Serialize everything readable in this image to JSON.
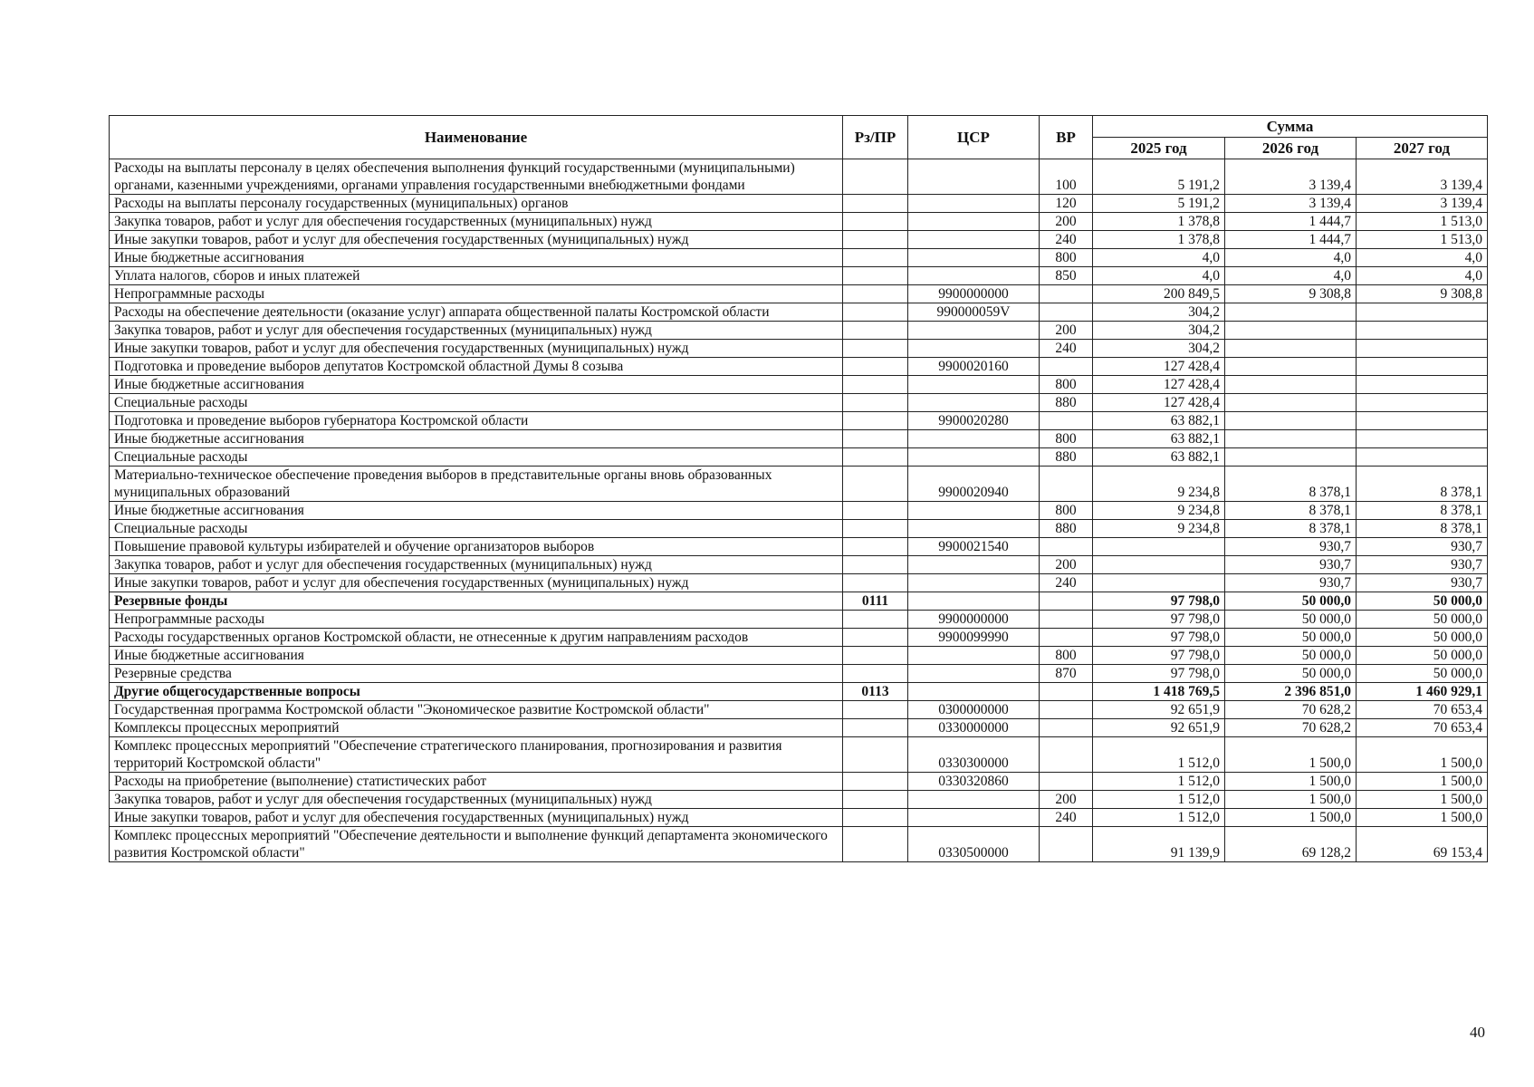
{
  "header": {
    "name": "Наименование",
    "rz_pr": "Рз/ПР",
    "csr": "ЦСР",
    "vr": "ВР",
    "sum": "Сумма",
    "y2025": "2025 год",
    "y2026": "2026 год",
    "y2027": "2027 год"
  },
  "rows": [
    {
      "name": "Расходы на выплаты персоналу в целях обеспечения выполнения функций государственными (муниципальными) органами, казенными учреждениями, органами управления государственными внебюджетными фондами",
      "rz": "",
      "csr": "",
      "vr": "100",
      "y2025": "5 191,2",
      "y2026": "3 139,4",
      "y2027": "3 139,4",
      "bold": false
    },
    {
      "name": "Расходы на выплаты персоналу государственных (муниципальных) органов",
      "rz": "",
      "csr": "",
      "vr": "120",
      "y2025": "5 191,2",
      "y2026": "3 139,4",
      "y2027": "3 139,4",
      "bold": false
    },
    {
      "name": "Закупка товаров, работ и услуг для обеспечения государственных (муниципальных) нужд",
      "rz": "",
      "csr": "",
      "vr": "200",
      "y2025": "1 378,8",
      "y2026": "1 444,7",
      "y2027": "1 513,0",
      "bold": false
    },
    {
      "name": "Иные закупки товаров, работ и услуг для обеспечения государственных (муниципальных) нужд",
      "rz": "",
      "csr": "",
      "vr": "240",
      "y2025": "1 378,8",
      "y2026": "1 444,7",
      "y2027": "1 513,0",
      "bold": false
    },
    {
      "name": "Иные бюджетные ассигнования",
      "rz": "",
      "csr": "",
      "vr": "800",
      "y2025": "4,0",
      "y2026": "4,0",
      "y2027": "4,0",
      "bold": false
    },
    {
      "name": "Уплата налогов, сборов и иных платежей",
      "rz": "",
      "csr": "",
      "vr": "850",
      "y2025": "4,0",
      "y2026": "4,0",
      "y2027": "4,0",
      "bold": false
    },
    {
      "name": "Непрограммные расходы",
      "rz": "",
      "csr": "9900000000",
      "vr": "",
      "y2025": "200 849,5",
      "y2026": "9 308,8",
      "y2027": "9 308,8",
      "bold": false
    },
    {
      "name": "Расходы на обеспечение деятельности (оказание услуг) аппарата общественной палаты Костромской области",
      "rz": "",
      "csr": "990000059V",
      "vr": "",
      "y2025": "304,2",
      "y2026": "",
      "y2027": "",
      "bold": false
    },
    {
      "name": "Закупка товаров, работ и услуг для обеспечения государственных (муниципальных) нужд",
      "rz": "",
      "csr": "",
      "vr": "200",
      "y2025": "304,2",
      "y2026": "",
      "y2027": "",
      "bold": false
    },
    {
      "name": "Иные закупки товаров, работ и услуг для обеспечения государственных (муниципальных) нужд",
      "rz": "",
      "csr": "",
      "vr": "240",
      "y2025": "304,2",
      "y2026": "",
      "y2027": "",
      "bold": false
    },
    {
      "name": "Подготовка и проведение выборов депутатов Костромской областной Думы 8 созыва",
      "rz": "",
      "csr": "9900020160",
      "vr": "",
      "y2025": "127 428,4",
      "y2026": "",
      "y2027": "",
      "bold": false
    },
    {
      "name": "Иные бюджетные ассигнования",
      "rz": "",
      "csr": "",
      "vr": "800",
      "y2025": "127 428,4",
      "y2026": "",
      "y2027": "",
      "bold": false
    },
    {
      "name": "Специальные расходы",
      "rz": "",
      "csr": "",
      "vr": "880",
      "y2025": "127 428,4",
      "y2026": "",
      "y2027": "",
      "bold": false
    },
    {
      "name": "Подготовка и проведение выборов губернатора Костромской области",
      "rz": "",
      "csr": "9900020280",
      "vr": "",
      "y2025": "63 882,1",
      "y2026": "",
      "y2027": "",
      "bold": false
    },
    {
      "name": "Иные бюджетные ассигнования",
      "rz": "",
      "csr": "",
      "vr": "800",
      "y2025": "63 882,1",
      "y2026": "",
      "y2027": "",
      "bold": false
    },
    {
      "name": "Специальные расходы",
      "rz": "",
      "csr": "",
      "vr": "880",
      "y2025": "63 882,1",
      "y2026": "",
      "y2027": "",
      "bold": false
    },
    {
      "name": "Материально-техническое обеспечение проведения выборов в представительные органы вновь образованных муниципальных образований",
      "rz": "",
      "csr": "9900020940",
      "vr": "",
      "y2025": "9 234,8",
      "y2026": "8 378,1",
      "y2027": "8 378,1",
      "bold": false
    },
    {
      "name": "Иные бюджетные ассигнования",
      "rz": "",
      "csr": "",
      "vr": "800",
      "y2025": "9 234,8",
      "y2026": "8 378,1",
      "y2027": "8 378,1",
      "bold": false
    },
    {
      "name": "Специальные расходы",
      "rz": "",
      "csr": "",
      "vr": "880",
      "y2025": "9 234,8",
      "y2026": "8 378,1",
      "y2027": "8 378,1",
      "bold": false
    },
    {
      "name": "Повышение правовой культуры избирателей и обучение организаторов выборов",
      "rz": "",
      "csr": "9900021540",
      "vr": "",
      "y2025": "",
      "y2026": "930,7",
      "y2027": "930,7",
      "bold": false
    },
    {
      "name": "Закупка товаров, работ и услуг для обеспечения государственных (муниципальных) нужд",
      "rz": "",
      "csr": "",
      "vr": "200",
      "y2025": "",
      "y2026": "930,7",
      "y2027": "930,7",
      "bold": false
    },
    {
      "name": "Иные закупки товаров, работ и услуг для обеспечения государственных (муниципальных) нужд",
      "rz": "",
      "csr": "",
      "vr": "240",
      "y2025": "",
      "y2026": "930,7",
      "y2027": "930,7",
      "bold": false
    },
    {
      "name": "Резервные фонды",
      "rz": "0111",
      "csr": "",
      "vr": "",
      "y2025": "97 798,0",
      "y2026": "50 000,0",
      "y2027": "50 000,0",
      "bold": true
    },
    {
      "name": "Непрограммные расходы",
      "rz": "",
      "csr": "9900000000",
      "vr": "",
      "y2025": "97 798,0",
      "y2026": "50 000,0",
      "y2027": "50 000,0",
      "bold": false
    },
    {
      "name": "Расходы государственных органов Костромской области, не отнесенные к другим направлениям расходов",
      "rz": "",
      "csr": "9900099990",
      "vr": "",
      "y2025": "97 798,0",
      "y2026": "50 000,0",
      "y2027": "50 000,0",
      "bold": false
    },
    {
      "name": "Иные бюджетные ассигнования",
      "rz": "",
      "csr": "",
      "vr": "800",
      "y2025": "97 798,0",
      "y2026": "50 000,0",
      "y2027": "50 000,0",
      "bold": false
    },
    {
      "name": "Резервные средства",
      "rz": "",
      "csr": "",
      "vr": "870",
      "y2025": "97 798,0",
      "y2026": "50 000,0",
      "y2027": "50 000,0",
      "bold": false
    },
    {
      "name": "Другие общегосударственные вопросы",
      "rz": "0113",
      "csr": "",
      "vr": "",
      "y2025": "1 418 769,5",
      "y2026": "2 396 851,0",
      "y2027": "1 460 929,1",
      "bold": true
    },
    {
      "name": "Государственная программа Костромской области \"Экономическое развитие Костромской области\"",
      "rz": "",
      "csr": "0300000000",
      "vr": "",
      "y2025": "92 651,9",
      "y2026": "70 628,2",
      "y2027": "70 653,4",
      "bold": false
    },
    {
      "name": "Комплексы процессных мероприятий",
      "rz": "",
      "csr": "0330000000",
      "vr": "",
      "y2025": "92 651,9",
      "y2026": "70 628,2",
      "y2027": "70 653,4",
      "bold": false
    },
    {
      "name": "Комплекс процессных мероприятий \"Обеспечение стратегического планирования, прогнозирования и развития территорий Костромской области\"",
      "rz": "",
      "csr": "0330300000",
      "vr": "",
      "y2025": "1 512,0",
      "y2026": "1 500,0",
      "y2027": "1 500,0",
      "bold": false
    },
    {
      "name": "Расходы на приобретение (выполнение) статистических работ",
      "rz": "",
      "csr": "0330320860",
      "vr": "",
      "y2025": "1 512,0",
      "y2026": "1 500,0",
      "y2027": "1 500,0",
      "bold": false
    },
    {
      "name": "Закупка товаров, работ и услуг для обеспечения государственных (муниципальных) нужд",
      "rz": "",
      "csr": "",
      "vr": "200",
      "y2025": "1 512,0",
      "y2026": "1 500,0",
      "y2027": "1 500,0",
      "bold": false
    },
    {
      "name": "Иные закупки товаров, работ и услуг для обеспечения государственных (муниципальных) нужд",
      "rz": "",
      "csr": "",
      "vr": "240",
      "y2025": "1 512,0",
      "y2026": "1 500,0",
      "y2027": "1 500,0",
      "bold": false
    },
    {
      "name": "Комплекс процессных мероприятий \"Обеспечение деятельности и выполнение функций департамента экономического развития Костромской области\"",
      "rz": "",
      "csr": "0330500000",
      "vr": "",
      "y2025": "91 139,9",
      "y2026": "69 128,2",
      "y2027": "69 153,4",
      "bold": false
    }
  ],
  "page_number": "40"
}
